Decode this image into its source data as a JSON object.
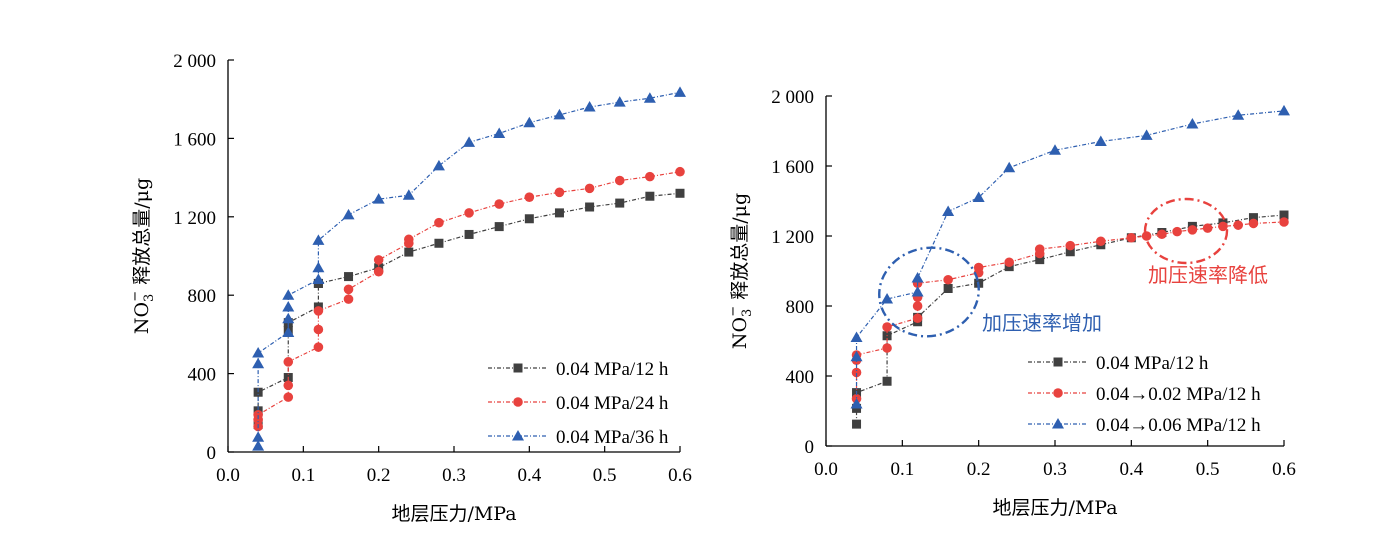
{
  "chart_data": [
    {
      "type": "line",
      "title": "",
      "xlabel": "地层压力/MPa",
      "ylabel": "NO3− 释放总量/μg",
      "ylabel_main": "NO",
      "ylabel_sub": "3",
      "ylabel_sup": "−",
      "ylabel_rest": " 释放总量/μg",
      "xlim": [
        0.0,
        0.6
      ],
      "ylim": [
        0,
        2000
      ],
      "xticks": [
        "0.0",
        "0.1",
        "0.2",
        "0.3",
        "0.4",
        "0.5",
        "0.6"
      ],
      "yticks": [
        "0",
        "400",
        "800",
        "1 200",
        "1 600",
        "2 000"
      ],
      "legend_position": "bottom-right",
      "series": [
        {
          "name": "0.04 MPa/12 h",
          "color": "#404040",
          "marker": "square",
          "x": [
            0.04,
            0.04,
            0.04,
            0.08,
            0.08,
            0.08,
            0.12,
            0.12,
            0.12,
            0.16,
            0.2,
            0.24,
            0.28,
            0.32,
            0.36,
            0.4,
            0.44,
            0.48,
            0.52,
            0.56,
            0.6
          ],
          "y": [
            140,
            210,
            305,
            380,
            620,
            660,
            740,
            860,
            860,
            895,
            940,
            1020,
            1065,
            1110,
            1150,
            1190,
            1220,
            1250,
            1270,
            1305,
            1320
          ]
        },
        {
          "name": "0.04 MPa/24 h",
          "color": "#e8423e",
          "marker": "circle",
          "x": [
            0.04,
            0.04,
            0.04,
            0.08,
            0.08,
            0.08,
            0.12,
            0.12,
            0.12,
            0.16,
            0.16,
            0.2,
            0.2,
            0.24,
            0.24,
            0.28,
            0.32,
            0.36,
            0.4,
            0.44,
            0.48,
            0.52,
            0.56,
            0.6
          ],
          "y": [
            130,
            165,
            190,
            280,
            340,
            460,
            535,
            625,
            720,
            780,
            830,
            920,
            980,
            1065,
            1085,
            1170,
            1220,
            1265,
            1300,
            1325,
            1345,
            1385,
            1405,
            1430
          ]
        },
        {
          "name": "0.04 MPa/36 h",
          "color": "#2e5fb0",
          "marker": "triangle",
          "x": [
            0.04,
            0.04,
            0.04,
            0.04,
            0.08,
            0.08,
            0.08,
            0.08,
            0.12,
            0.12,
            0.12,
            0.16,
            0.2,
            0.24,
            0.28,
            0.32,
            0.36,
            0.4,
            0.44,
            0.48,
            0.52,
            0.56,
            0.6
          ],
          "y": [
            30,
            75,
            450,
            505,
            610,
            680,
            740,
            800,
            880,
            940,
            1080,
            1210,
            1290,
            1310,
            1460,
            1580,
            1625,
            1680,
            1720,
            1760,
            1785,
            1805,
            1835
          ]
        }
      ]
    },
    {
      "type": "line",
      "title": "",
      "xlabel": "地层压力/MPa",
      "ylabel": "NO3− 释放总量/μg",
      "ylabel_main": "NO",
      "ylabel_sub": "3",
      "ylabel_sup": "−",
      "ylabel_rest": " 释放总量/μg",
      "xlim": [
        0.0,
        0.6
      ],
      "ylim": [
        0,
        2000
      ],
      "xticks": [
        "0.0",
        "0.1",
        "0.2",
        "0.3",
        "0.4",
        "0.5",
        "0.6"
      ],
      "yticks": [
        "0",
        "400",
        "800",
        "1 200",
        "1 600",
        "2 000"
      ],
      "legend_position": "bottom-right",
      "annotations": [
        {
          "text": "加压速率增加",
          "color": "#2e5fb0"
        },
        {
          "text": "加压速率降低",
          "color": "#e8423e"
        }
      ],
      "series": [
        {
          "name": "0.04 MPa/12 h",
          "color": "#404040",
          "marker": "square",
          "x": [
            0.04,
            0.04,
            0.04,
            0.08,
            0.08,
            0.12,
            0.12,
            0.16,
            0.2,
            0.24,
            0.28,
            0.32,
            0.36,
            0.4,
            0.44,
            0.48,
            0.52,
            0.56,
            0.6
          ],
          "y": [
            125,
            215,
            305,
            370,
            630,
            710,
            735,
            900,
            930,
            1025,
            1065,
            1110,
            1150,
            1190,
            1220,
            1255,
            1275,
            1305,
            1320
          ]
        },
        {
          "name": "0.04→0.02 MPa/12 h",
          "color": "#e8423e",
          "marker": "circle",
          "x": [
            0.04,
            0.04,
            0.04,
            0.04,
            0.08,
            0.08,
            0.12,
            0.12,
            0.12,
            0.12,
            0.16,
            0.2,
            0.2,
            0.24,
            0.28,
            0.28,
            0.32,
            0.36,
            0.4,
            0.42,
            0.44,
            0.46,
            0.48,
            0.5,
            0.52,
            0.54,
            0.56,
            0.6
          ],
          "y": [
            270,
            420,
            490,
            520,
            560,
            680,
            730,
            800,
            850,
            930,
            950,
            990,
            1020,
            1050,
            1100,
            1125,
            1145,
            1170,
            1190,
            1200,
            1210,
            1225,
            1235,
            1245,
            1255,
            1262,
            1272,
            1280
          ]
        },
        {
          "name": "0.04→0.06 MPa/12 h",
          "color": "#2e5fb0",
          "marker": "triangle",
          "x": [
            0.04,
            0.04,
            0.04,
            0.08,
            0.12,
            0.12,
            0.16,
            0.2,
            0.24,
            0.3,
            0.36,
            0.42,
            0.48,
            0.54,
            0.6
          ],
          "y": [
            240,
            510,
            620,
            840,
            880,
            960,
            1340,
            1420,
            1590,
            1690,
            1740,
            1775,
            1840,
            1890,
            1915
          ]
        }
      ]
    }
  ]
}
